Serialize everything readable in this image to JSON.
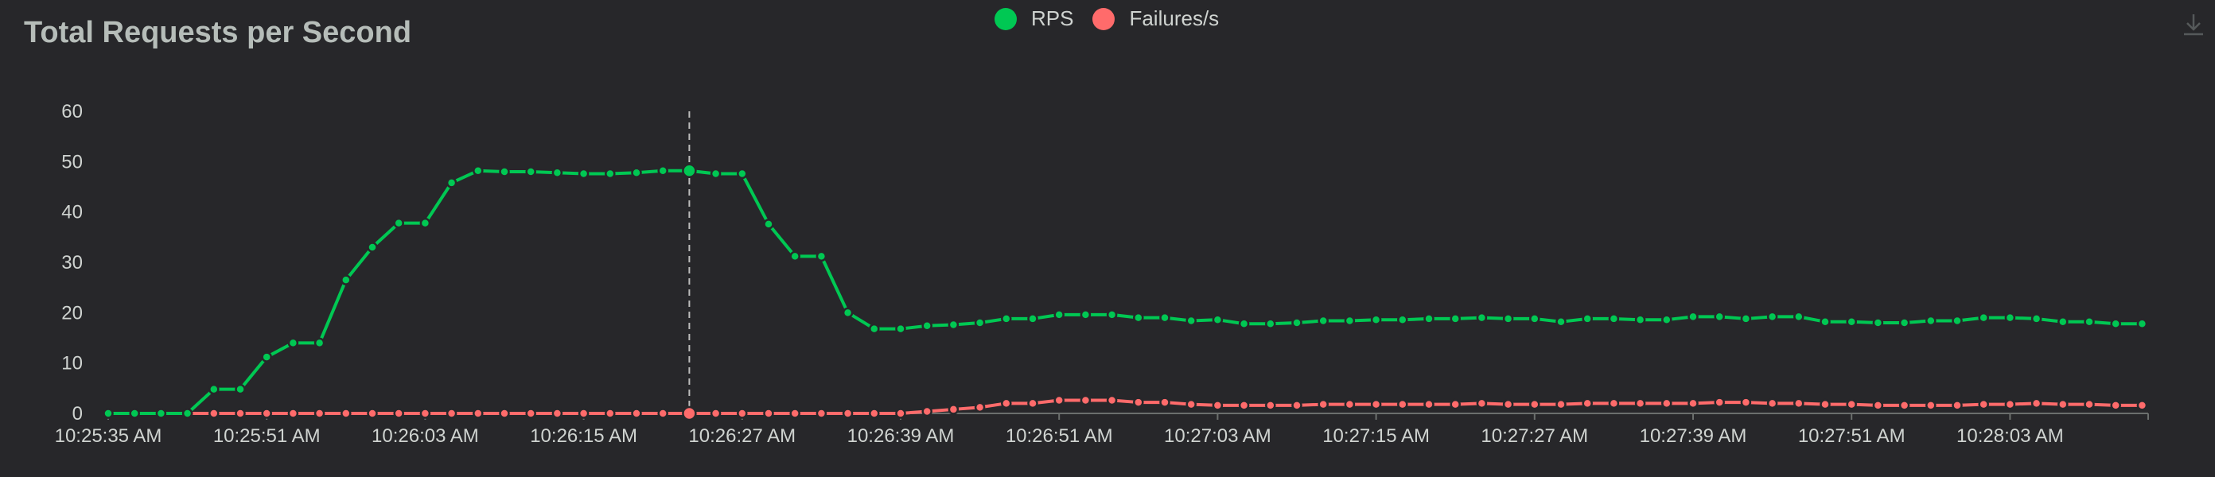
{
  "title": "Total Requests per Second",
  "colors": {
    "background": "#27272a",
    "rps": "#00c853",
    "failures": "#ff6b6b",
    "axis": "#6b6f6d",
    "text": "#cfd3d0",
    "hover_line": "#bdbdbd"
  },
  "toolbar": {
    "download_icon": "download-icon"
  },
  "chart_data": {
    "type": "line",
    "legend_position": "top-center",
    "grid": false,
    "ylim": [
      0,
      60
    ],
    "yticks": [
      "0",
      "10",
      "20",
      "30",
      "40",
      "50",
      "60"
    ],
    "xticks": [
      "10:25:35 AM",
      "10:25:51 AM",
      "10:26:03 AM",
      "10:26:15 AM",
      "10:26:27 AM",
      "10:26:39 AM",
      "10:26:51 AM",
      "10:27:03 AM",
      "10:27:15 AM",
      "10:27:27 AM",
      "10:27:39 AM",
      "10:27:51 AM",
      "10:28:03 AM"
    ],
    "hover_index": 22,
    "series": [
      {
        "name": "RPS",
        "color": "#00c853",
        "values": [
          0,
          0,
          0,
          0,
          4.8,
          4.8,
          11.2,
          14,
          14,
          26.5,
          33,
          37.8,
          37.8,
          45.8,
          48.2,
          48,
          48,
          47.8,
          47.6,
          47.6,
          47.8,
          48.2,
          48.2,
          47.6,
          47.6,
          37.6,
          31.2,
          31.2,
          20,
          16.8,
          16.8,
          17.4,
          17.6,
          18,
          18.8,
          18.8,
          19.6,
          19.6,
          19.6,
          19,
          19,
          18.4,
          18.6,
          17.8,
          17.8,
          18,
          18.4,
          18.4,
          18.6,
          18.6,
          18.8,
          18.8,
          19,
          18.8,
          18.8,
          18.2,
          18.8,
          18.8,
          18.6,
          18.6,
          19.2,
          19.2,
          18.8,
          19.2,
          19.2,
          18.2,
          18.2,
          18,
          18,
          18.4,
          18.4,
          19,
          19,
          18.8,
          18.2,
          18.2,
          17.8,
          17.8
        ]
      },
      {
        "name": "Failures/s",
        "color": "#ff6b6b",
        "values": [
          0,
          0,
          0,
          0,
          0,
          0,
          0,
          0,
          0,
          0,
          0,
          0,
          0,
          0,
          0,
          0,
          0,
          0,
          0,
          0,
          0,
          0,
          0,
          0,
          0,
          0,
          0,
          0,
          0,
          0,
          0,
          0.4,
          0.8,
          1.2,
          2,
          2,
          2.6,
          2.6,
          2.6,
          2.2,
          2.2,
          1.8,
          1.6,
          1.6,
          1.6,
          1.6,
          1.8,
          1.8,
          1.8,
          1.8,
          1.8,
          1.8,
          2,
          1.8,
          1.8,
          1.8,
          2,
          2,
          2,
          2,
          2,
          2.2,
          2.2,
          2,
          2,
          1.8,
          1.8,
          1.6,
          1.6,
          1.6,
          1.6,
          1.8,
          1.8,
          2,
          1.8,
          1.8,
          1.6,
          1.6
        ]
      }
    ]
  }
}
